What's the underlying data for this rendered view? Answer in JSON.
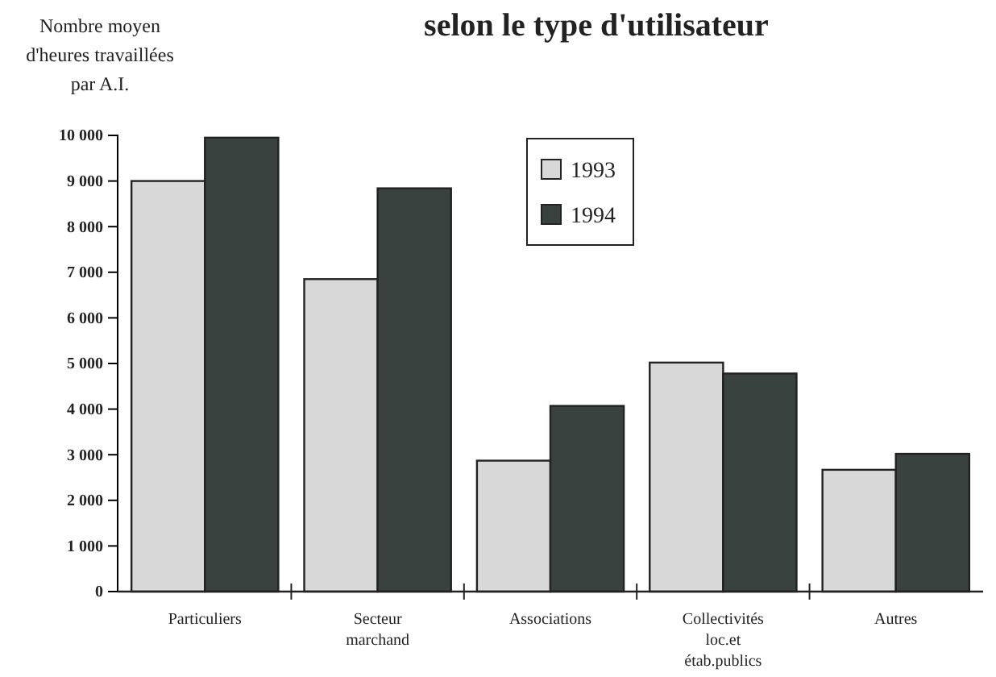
{
  "chart_data": {
    "type": "bar",
    "title": "selon le type d'utilisateur",
    "ylabel": "Nombre moyen d'heures travaillées par A.I.",
    "categories": [
      "Particuliers",
      "Secteur marchand",
      "Associations",
      "Collectivités loc.et étab.publics",
      "Autres"
    ],
    "series": [
      {
        "name": "1993",
        "color": "#d8d8d8",
        "values": [
          9000,
          6850,
          2870,
          5020,
          2670
        ]
      },
      {
        "name": "1994",
        "color": "#3a423f",
        "values": [
          9950,
          8840,
          4070,
          4780,
          3020
        ]
      }
    ],
    "ylim": [
      0,
      10000
    ],
    "yticks": [
      0,
      {
        "value": 1000,
        "label": "1 000"
      },
      {
        "value": 2000,
        "label": "2 000"
      },
      {
        "value": 3000,
        "label": "3 000"
      },
      {
        "value": 4000,
        "label": "4 000"
      },
      {
        "value": 5000,
        "label": "5 000"
      },
      {
        "value": 6000,
        "label": "6 000"
      },
      {
        "value": 7000,
        "label": "7 000"
      },
      {
        "value": 8000,
        "label": "8 000"
      },
      {
        "value": 9000,
        "label": "9 000"
      },
      {
        "value": 10000,
        "label": "10 000"
      }
    ],
    "grid": false,
    "legend": "top"
  }
}
